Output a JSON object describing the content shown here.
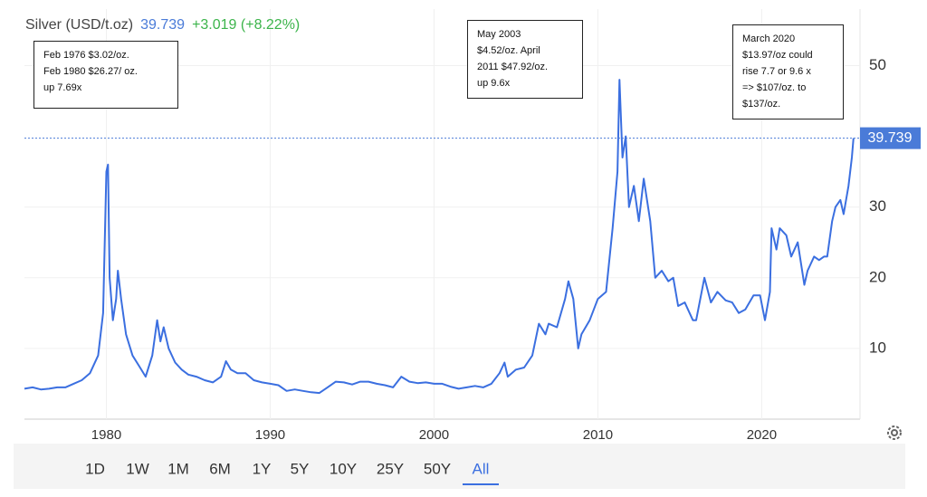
{
  "chart_data": {
    "type": "line",
    "title": "Silver (USD/t.oz)",
    "current_value": 39.739,
    "change": "+3.019 (+8.22%)",
    "annotations": [
      [
        "Feb 1976 $3.02/oz.",
        "Feb 1980 $26.27/ oz.",
        "up 7.69x"
      ],
      [
        "May 2003",
        "$4.52/oz. April",
        "2011 $47.92/oz.",
        "up 9.6x"
      ],
      [
        "March 2020",
        "$13.97/oz could",
        "rise 7.7 or 9.6 x",
        "=> $107/oz. to",
        "$137/oz."
      ]
    ],
    "x": [
      1975.0,
      1975.5,
      1976,
      1976.5,
      1977,
      1977.5,
      1978,
      1978.5,
      1979,
      1979.5,
      1979.8,
      1980.0,
      1980.1,
      1980.2,
      1980.4,
      1980.6,
      1980.7,
      1980.9,
      1981.2,
      1981.6,
      1982.0,
      1982.4,
      1982.8,
      1983.1,
      1983.3,
      1983.5,
      1983.8,
      1984.2,
      1984.6,
      1985,
      1985.5,
      1986,
      1986.5,
      1987,
      1987.3,
      1987.6,
      1988,
      1988.5,
      1989,
      1989.5,
      1990,
      1990.5,
      1991,
      1991.5,
      1992,
      1992.5,
      1993,
      1993.5,
      1994,
      1994.5,
      1995,
      1995.5,
      1996,
      1996.5,
      1997,
      1997.5,
      1998,
      1998.5,
      1999,
      1999.5,
      2000,
      2000.5,
      2001,
      2001.5,
      2002,
      2002.5,
      2003,
      2003.5,
      2004,
      2004.3,
      2004.5,
      2005,
      2005.5,
      2006,
      2006.4,
      2006.8,
      2007,
      2007.5,
      2008,
      2008.2,
      2008.5,
      2008.8,
      2009,
      2009.5,
      2010,
      2010.5,
      2010.9,
      2011.2,
      2011.32,
      2011.5,
      2011.7,
      2011.9,
      2012.2,
      2012.5,
      2012.8,
      2013.2,
      2013.5,
      2013.9,
      2014.3,
      2014.6,
      2014.9,
      2015.3,
      2015.8,
      2016.0,
      2016.5,
      2016.9,
      2017.3,
      2017.8,
      2018.2,
      2018.6,
      2019,
      2019.5,
      2019.9,
      2020.2,
      2020.5,
      2020.6,
      2020.9,
      2021.1,
      2021.5,
      2021.8,
      2022.2,
      2022.6,
      2022.8,
      2023.2,
      2023.5,
      2023.8,
      2024.0,
      2024.3,
      2024.5,
      2024.8,
      2025.0,
      2025.3,
      2025.5,
      2025.6
    ],
    "series": [
      {
        "color": "#3b6fe0",
        "values": [
          4.3,
          4.5,
          4.2,
          4.3,
          4.5,
          4.5,
          5.0,
          5.5,
          6.5,
          9,
          15,
          35,
          36,
          20,
          14,
          17,
          21,
          17,
          12,
          9,
          7.5,
          6,
          9,
          14,
          11,
          13,
          10,
          8,
          7,
          6.3,
          6.0,
          5.5,
          5.2,
          6,
          8.2,
          7,
          6.5,
          6.5,
          5.5,
          5.2,
          5.0,
          4.8,
          4.0,
          4.2,
          4.0,
          3.8,
          3.7,
          4.5,
          5.3,
          5.2,
          4.9,
          5.3,
          5.3,
          5.0,
          4.8,
          4.5,
          6.0,
          5.3,
          5.1,
          5.2,
          5.0,
          5.0,
          4.6,
          4.3,
          4.5,
          4.7,
          4.5,
          5.0,
          6.5,
          8.0,
          6.0,
          7.0,
          7.3,
          9.0,
          13.5,
          12,
          13.5,
          13,
          17,
          19.5,
          17,
          10,
          12,
          14,
          17,
          18,
          27,
          35,
          48,
          37,
          40,
          30,
          33,
          28,
          34,
          28,
          20,
          21,
          19.5,
          20,
          16,
          16.5,
          14,
          14,
          20,
          16.5,
          18,
          16.8,
          16.5,
          15,
          15.5,
          17.5,
          17.5,
          14,
          18,
          27,
          24,
          27,
          26,
          23,
          25,
          19,
          21,
          23,
          22.5,
          23,
          23,
          28,
          30,
          31,
          29,
          33,
          37,
          39.739
        ]
      }
    ],
    "xlim": [
      1975,
      2026
    ],
    "ylim": [
      0,
      58
    ],
    "xticks": [
      1980,
      1990,
      2000,
      2010,
      2020
    ],
    "yticks": [
      10,
      20,
      30,
      50
    ],
    "grid": true
  },
  "range_buttons": [
    "1D",
    "1W",
    "1M",
    "6M",
    "1Y",
    "5Y",
    "10Y",
    "25Y",
    "50Y",
    "All"
  ],
  "selected_range": 9
}
